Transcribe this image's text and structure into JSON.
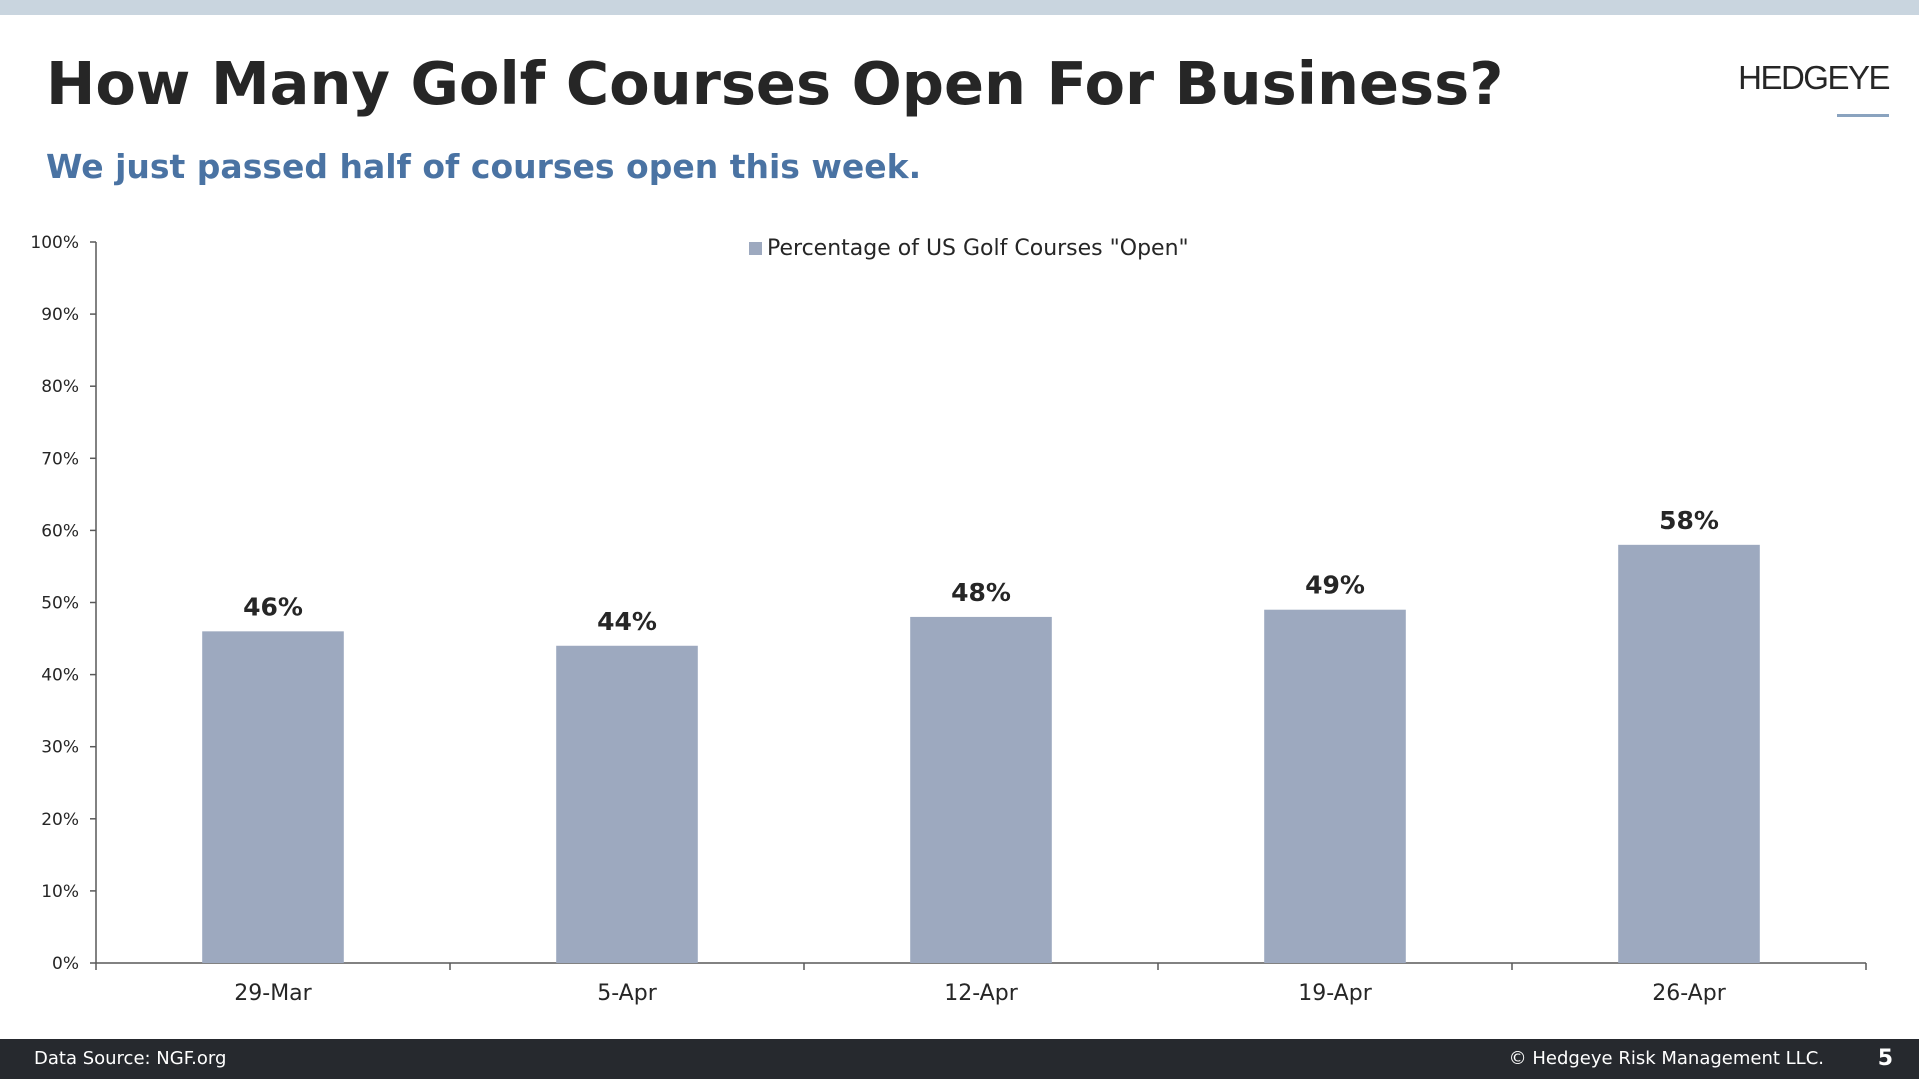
{
  "header": {
    "title": "How Many Golf Courses Open For Business?",
    "subtitle": "We just passed half of courses open this week.",
    "logo_text": "HEDGEYE"
  },
  "colors": {
    "top_bar": "#c9d5df",
    "bar": "#9da9bf",
    "subtitle": "#4a73a3",
    "footer": "#26292e",
    "axis": "#595959"
  },
  "chart_data": {
    "type": "bar",
    "categories": [
      "29-Mar",
      "5-Apr",
      "12-Apr",
      "19-Apr",
      "26-Apr"
    ],
    "series": [
      {
        "name": "Percentage of US Golf Courses \"Open\"",
        "values": [
          46,
          44,
          48,
          49,
          58
        ]
      }
    ],
    "data_labels": [
      "46%",
      "44%",
      "48%",
      "49%",
      "58%"
    ],
    "y_ticks": [
      0,
      10,
      20,
      30,
      40,
      50,
      60,
      70,
      80,
      90,
      100
    ],
    "y_tick_labels": [
      "0%",
      "10%",
      "20%",
      "30%",
      "40%",
      "50%",
      "60%",
      "70%",
      "80%",
      "90%",
      "100%"
    ],
    "ylim": [
      0,
      100
    ],
    "grid": false,
    "legend_position": "top-center"
  },
  "footer": {
    "source": "Data Source: NGF.org",
    "copyright": "© Hedgeye Risk Management LLC.",
    "page_number": "5"
  }
}
